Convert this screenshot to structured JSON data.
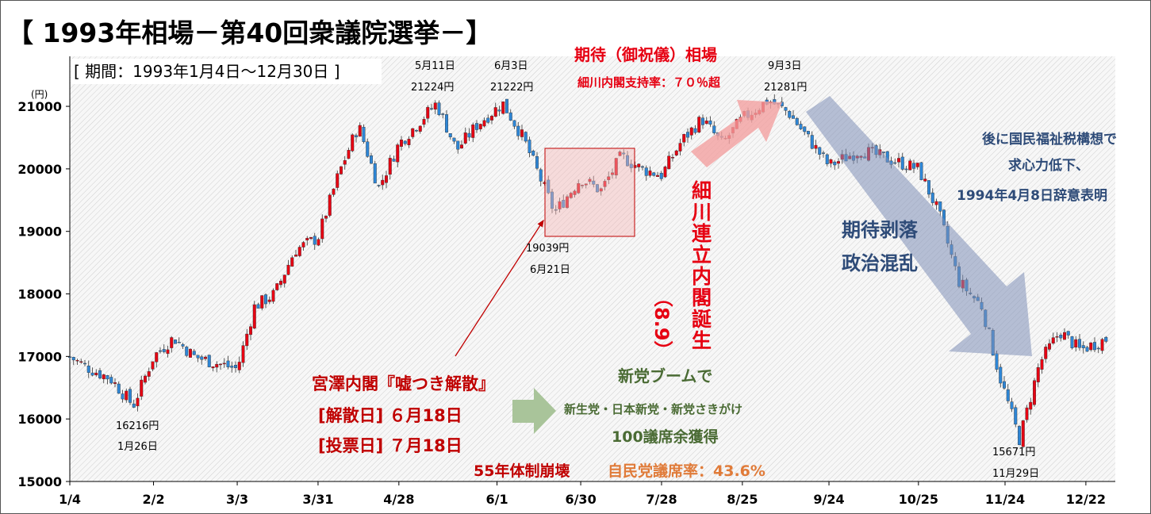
{
  "colors": {
    "up": "#e60012",
    "down": "#2e86d6",
    "red_text": "#c00000",
    "green_text": "#4a6b34",
    "orange_text": "#e07b39",
    "blue_text": "#2e4b78",
    "band_arrow": "#f4a3a3",
    "down_arrow": "#8f9fc1",
    "green_arrow": "#a9c49a"
  },
  "chart_data": {
    "type": "candlestick",
    "title": "【 1993年相場－第40回衆議院選挙－】",
    "subtitle": "[ 期間：1993年1月4日～12月30日 ]",
    "ylabel": "(円)",
    "ylim": [
      15000,
      21800
    ],
    "yticks": [
      15000,
      16000,
      17000,
      18000,
      19000,
      20000,
      21000
    ],
    "x_ticks": [
      "1/4",
      "2/2",
      "3/3",
      "3/31",
      "4/28",
      "6/1",
      "6/30",
      "7/28",
      "8/25",
      "9/24",
      "10/25",
      "11/24",
      "12/22"
    ],
    "grid": false,
    "legend": "none",
    "anchors": [
      {
        "date": "1993-01-04",
        "v": 16990
      },
      {
        "date": "1993-01-11",
        "v": 16800
      },
      {
        "date": "1993-01-18",
        "v": 16650
      },
      {
        "date": "1993-01-26",
        "v": 16216
      },
      {
        "date": "1993-02-02",
        "v": 17000
      },
      {
        "date": "1993-02-09",
        "v": 17300
      },
      {
        "date": "1993-02-16",
        "v": 17000
      },
      {
        "date": "1993-02-23",
        "v": 16900
      },
      {
        "date": "1993-03-03",
        "v": 16800
      },
      {
        "date": "1993-03-09",
        "v": 17800
      },
      {
        "date": "1993-03-16",
        "v": 18000
      },
      {
        "date": "1993-03-23",
        "v": 18700
      },
      {
        "date": "1993-03-31",
        "v": 18900
      },
      {
        "date": "1993-04-07",
        "v": 19900
      },
      {
        "date": "1993-04-14",
        "v": 20700
      },
      {
        "date": "1993-04-21",
        "v": 19700
      },
      {
        "date": "1993-04-28",
        "v": 20400
      },
      {
        "date": "1993-05-11",
        "v": 21050
      },
      {
        "date": "1993-05-18",
        "v": 20300
      },
      {
        "date": "1993-05-25",
        "v": 20700
      },
      {
        "date": "1993-06-03",
        "v": 21050
      },
      {
        "date": "1993-06-10",
        "v": 20500
      },
      {
        "date": "1993-06-21",
        "v": 19300
      },
      {
        "date": "1993-06-30",
        "v": 19850
      },
      {
        "date": "1993-07-07",
        "v": 19650
      },
      {
        "date": "1993-07-14",
        "v": 20200
      },
      {
        "date": "1993-07-21",
        "v": 20000
      },
      {
        "date": "1993-07-28",
        "v": 19900
      },
      {
        "date": "1993-08-04",
        "v": 20450
      },
      {
        "date": "1993-08-11",
        "v": 20800
      },
      {
        "date": "1993-08-18",
        "v": 20400
      },
      {
        "date": "1993-08-25",
        "v": 20800
      },
      {
        "date": "1993-09-03",
        "v": 21100
      },
      {
        "date": "1993-09-10",
        "v": 20900
      },
      {
        "date": "1993-09-24",
        "v": 20050
      },
      {
        "date": "1993-10-05",
        "v": 20300
      },
      {
        "date": "1993-10-15",
        "v": 20150
      },
      {
        "date": "1993-10-25",
        "v": 20000
      },
      {
        "date": "1993-11-01",
        "v": 19300
      },
      {
        "date": "1993-11-08",
        "v": 18200
      },
      {
        "date": "1993-11-16",
        "v": 17800
      },
      {
        "date": "1993-11-22",
        "v": 16700
      },
      {
        "date": "1993-11-29",
        "v": 15671
      },
      {
        "date": "1993-12-06",
        "v": 16900
      },
      {
        "date": "1993-12-13",
        "v": 17400
      },
      {
        "date": "1993-12-20",
        "v": 17100
      },
      {
        "date": "1993-12-30",
        "v": 17300
      }
    ]
  },
  "labels": {
    "jan26_price": "16216円",
    "jan26_date": "1月26日",
    "may11_date": "5月11日",
    "may11_price": "21224円",
    "jun3_date": "6月3日",
    "jun3_price": "21222円",
    "jun21_price": "19039円",
    "jun21_date": "6月21日",
    "sep3_date": "9月3日",
    "sep3_price": "21281円",
    "nov29_price": "15671円",
    "nov29_date": "11月29日"
  },
  "annotations": {
    "expect_title": "期待（御祝儀）相場",
    "approval": "細川内閣支持率：７０％超",
    "hosokawa_vertical": "細川連立内閣誕生",
    "hosokawa_date": "（8.9）",
    "later_1": "後に国民福祉税構想で",
    "later_2": "求心力低下、",
    "later_3": "1994年4月8日辞意表明",
    "collapse_1": "期待剥落",
    "collapse_2": "政治混乱",
    "miyazawa": "宮澤内閣『嘘つき解散』",
    "dissolve": "[解散日] ６月18日",
    "vote": "[投票日] ７月18日",
    "regime": "55年体制崩壊",
    "ldp": "自民党議席率：43.6%",
    "boom_1": "新党ブームで",
    "boom_2": "新生党・日本新党・新党さきがけ",
    "boom_3": "100議席余獲得"
  }
}
